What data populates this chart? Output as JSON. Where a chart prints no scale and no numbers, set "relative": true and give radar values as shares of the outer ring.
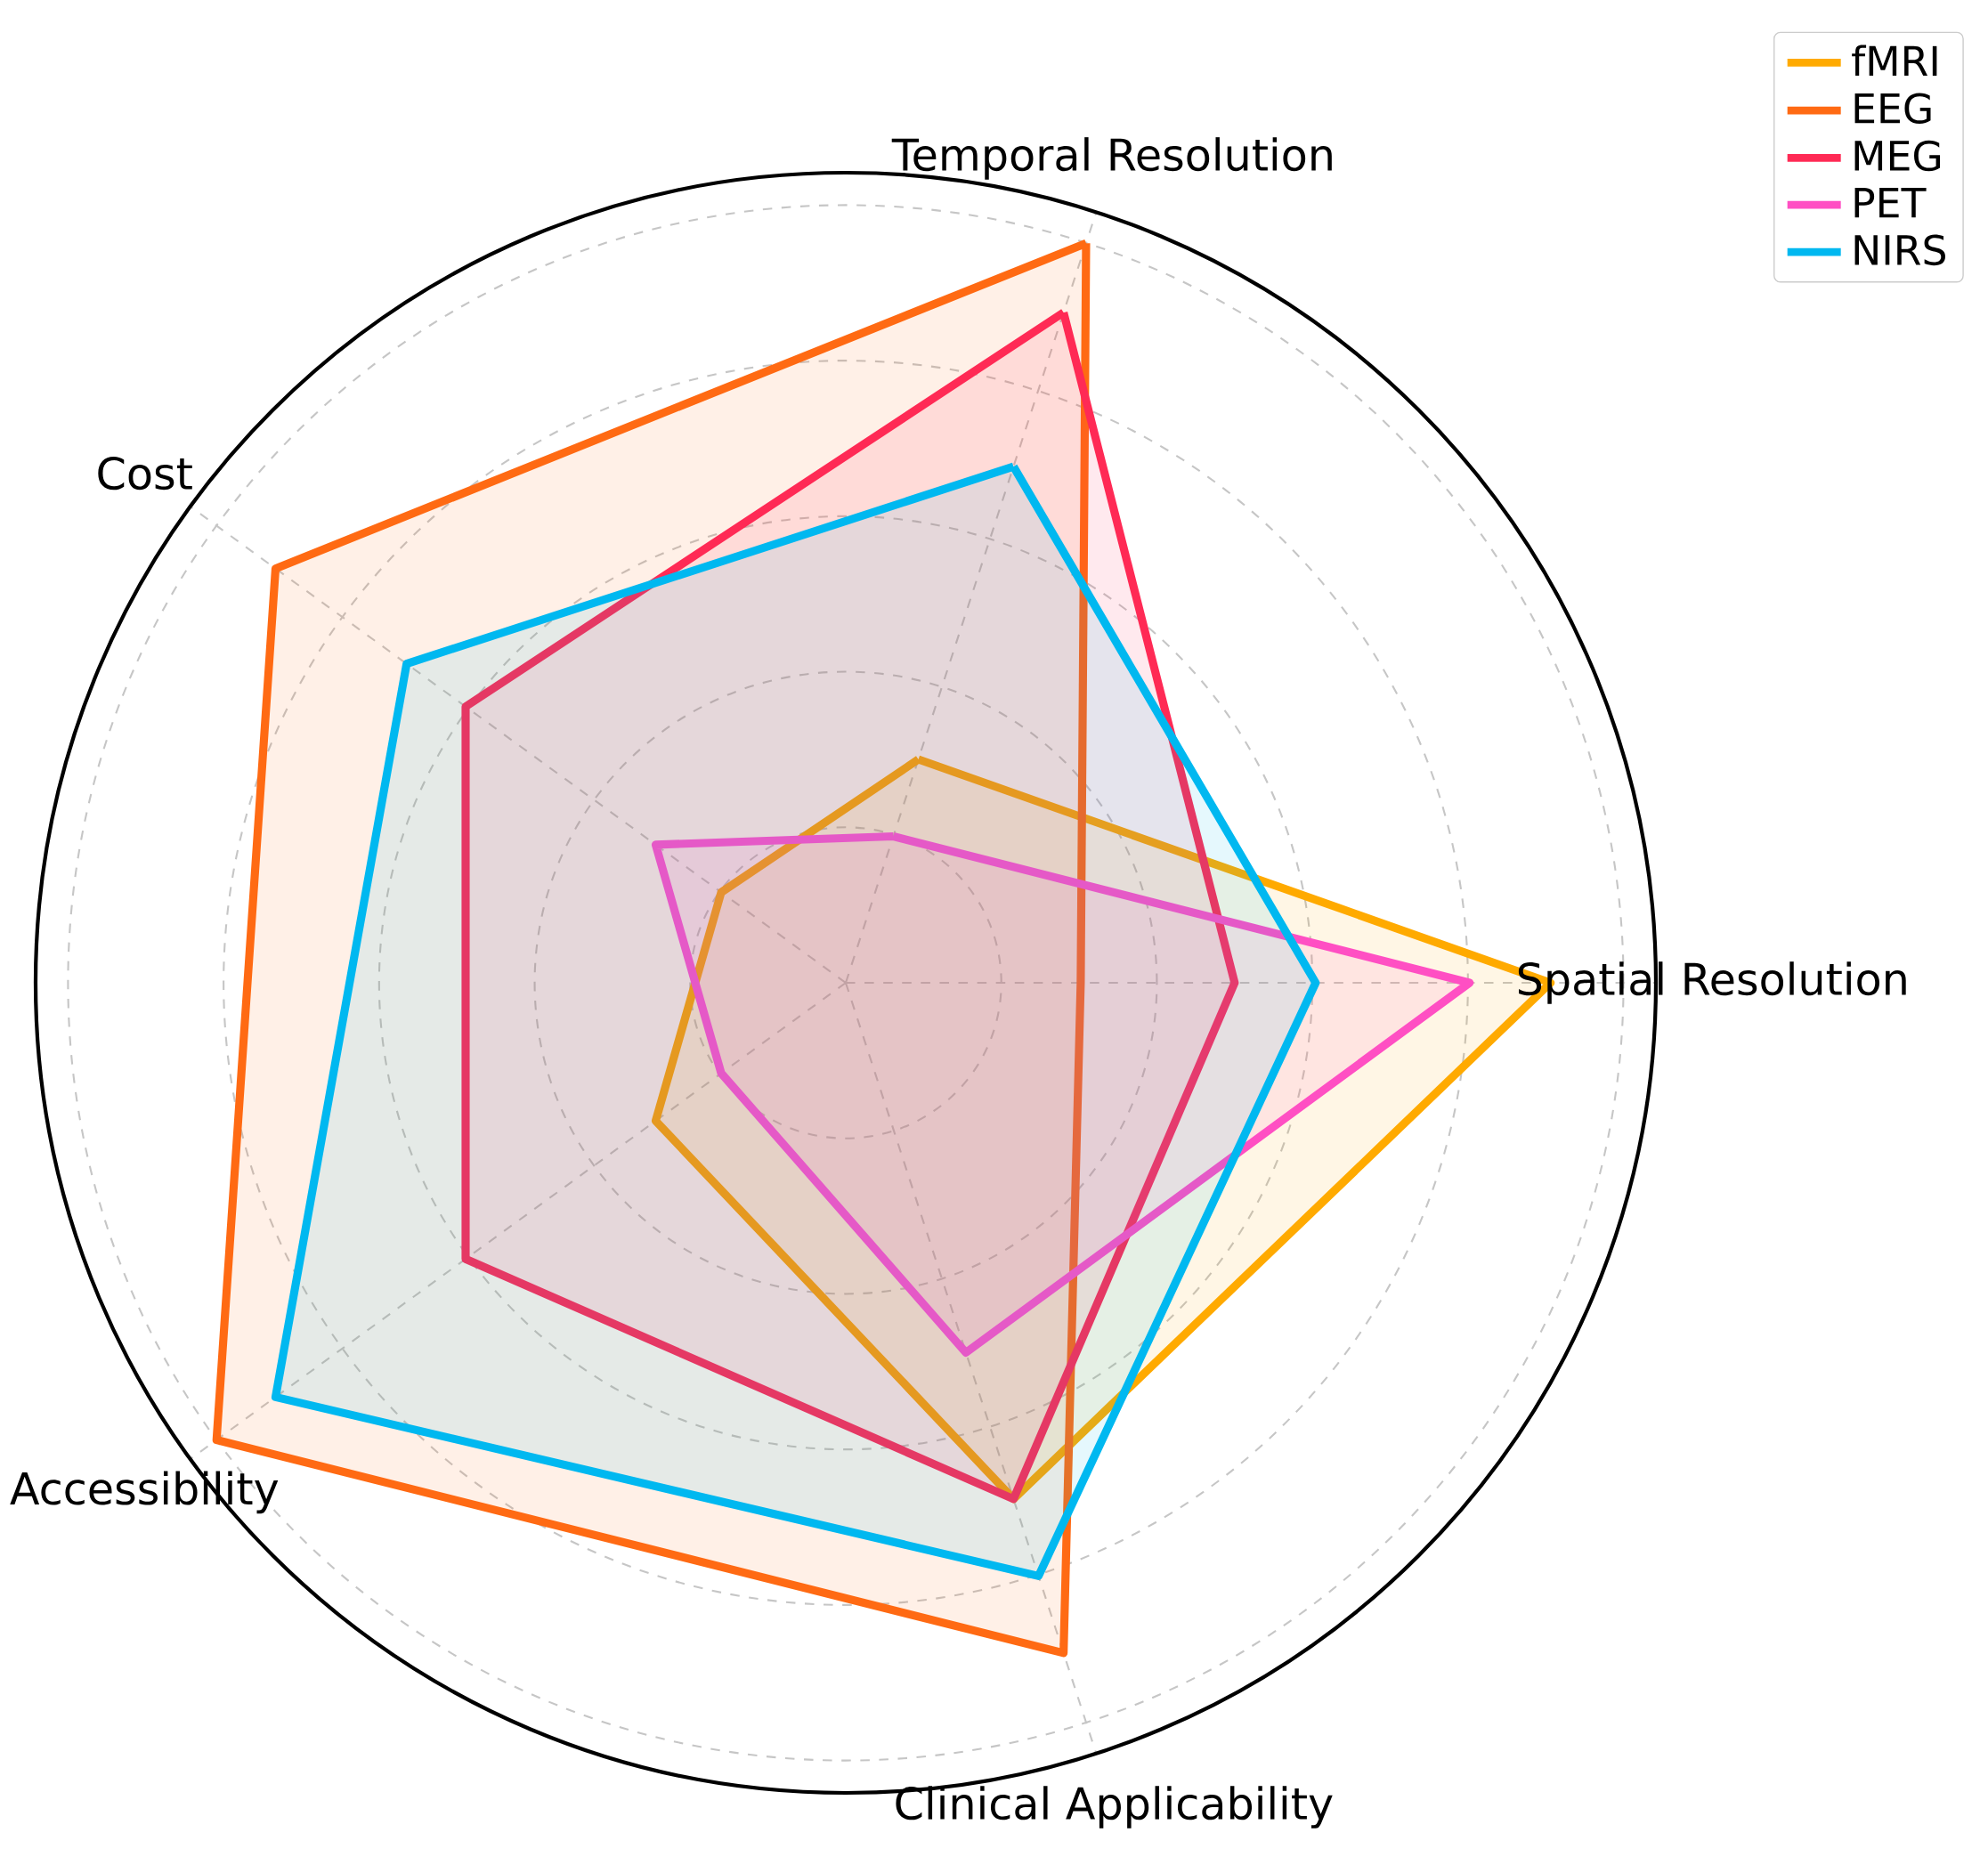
{
  "chart_data": {
    "type": "radar",
    "relative": true,
    "categories": [
      "Temporal Resolution",
      "Spatial Resolution",
      "Clinical Applicability",
      "Accessibility",
      "Cost"
    ],
    "series": [
      {
        "name": "fMRI",
        "color": "#ffaa00",
        "values": [
          0.29,
          0.87,
          0.67,
          0.29,
          0.19
        ]
      },
      {
        "name": "EEG",
        "color": "#ff6a13",
        "values": [
          0.96,
          0.29,
          0.87,
          0.96,
          0.87
        ]
      },
      {
        "name": "MEG",
        "color": "#ff2a55",
        "values": [
          0.87,
          0.48,
          0.67,
          0.58,
          0.58
        ]
      },
      {
        "name": "PET",
        "color": "#ff4fc3",
        "values": [
          0.19,
          0.77,
          0.48,
          0.19,
          0.29
        ]
      },
      {
        "name": "NIRS",
        "color": "#00b8f0",
        "values": [
          0.67,
          0.58,
          0.77,
          0.87,
          0.67
        ]
      }
    ],
    "grid": true,
    "legend": "top right"
  }
}
